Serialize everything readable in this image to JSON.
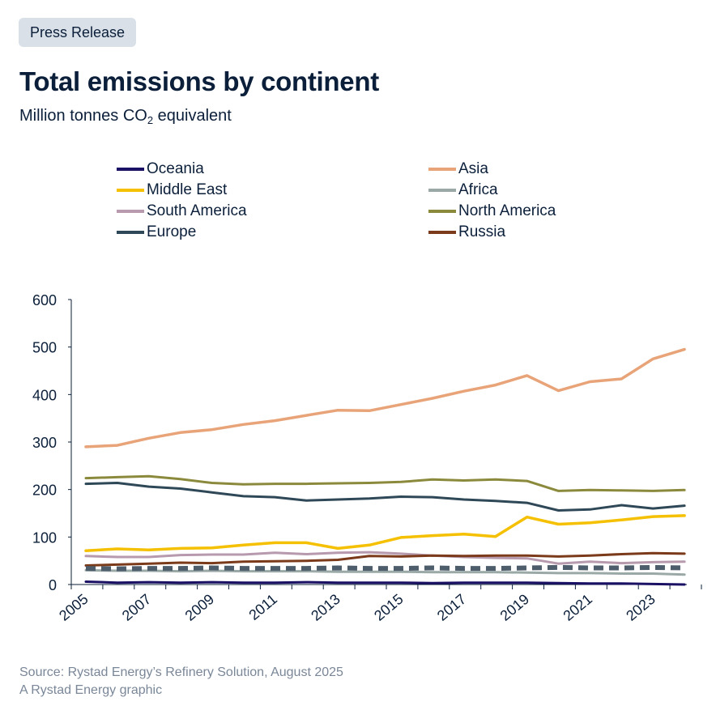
{
  "badge": "Press Release",
  "title": "Total emissions by continent",
  "subtitle": {
    "prefix": "Million tonnes CO",
    "sub": "2",
    "suffix": " equivalent"
  },
  "source": {
    "line1": "Source: Rystad Energy’s Refinery Solution, August 2025",
    "line2": "A Rystad Energy graphic"
  },
  "chart_data": {
    "type": "line",
    "x_ticks": [
      "2005",
      "2007",
      "2009",
      "2011",
      "2013",
      "2015",
      "2017",
      "2019",
      "2021",
      "2023"
    ],
    "y_ticks": [
      "0",
      "100",
      "200",
      "300",
      "400",
      "500",
      "600"
    ],
    "ylim": [
      0,
      600
    ],
    "xlim": [
      2005,
      2024
    ],
    "grid": false,
    "legend_position": "top",
    "x": [
      2005,
      2006,
      2007,
      2008,
      2009,
      2010,
      2011,
      2012,
      2013,
      2014,
      2015,
      2016,
      2017,
      2018,
      2019,
      2020,
      2021,
      2022,
      2023,
      2024
    ],
    "series": [
      {
        "name": "Oceania",
        "color": "#1a1064",
        "values": [
          6,
          4,
          5,
          4,
          5,
          4,
          4,
          5,
          4,
          4,
          4,
          3,
          4,
          4,
          4,
          3,
          2,
          2,
          1,
          0
        ]
      },
      {
        "name": "Asia",
        "color": "#e8a478",
        "values": [
          290,
          293,
          308,
          320,
          326,
          337,
          345,
          356,
          367,
          366,
          379,
          392,
          407,
          420,
          440,
          408,
          427,
          433,
          475,
          495
        ]
      },
      {
        "name": "Middle East",
        "color": "#f5c000",
        "values": [
          71,
          75,
          73,
          76,
          77,
          83,
          88,
          88,
          76,
          83,
          99,
          103,
          106,
          101,
          142,
          127,
          130,
          136,
          143,
          145
        ]
      },
      {
        "name": "Africa",
        "color": "#9aa9a6",
        "values": [
          30,
          29,
          29,
          28,
          29,
          28,
          28,
          28,
          27,
          27,
          27,
          26,
          26,
          26,
          25,
          24,
          24,
          23,
          23,
          21
        ]
      },
      {
        "name": "South America",
        "color": "#b79aae",
        "values": [
          60,
          58,
          58,
          62,
          63,
          63,
          67,
          64,
          67,
          68,
          65,
          61,
          58,
          56,
          55,
          44,
          48,
          45,
          47,
          48
        ]
      },
      {
        "name": "North America",
        "color": "#8b8a3c",
        "values": [
          224,
          226,
          228,
          222,
          214,
          211,
          212,
          212,
          213,
          214,
          216,
          221,
          219,
          221,
          218,
          197,
          199,
          198,
          197,
          199
        ]
      },
      {
        "name": "Europe",
        "color": "#2f4858",
        "values": [
          212,
          214,
          206,
          202,
          194,
          186,
          184,
          177,
          179,
          181,
          185,
          184,
          179,
          176,
          172,
          156,
          158,
          167,
          160,
          166
        ]
      },
      {
        "name": "Russia",
        "color": "#7b3a1a",
        "values": [
          40,
          42,
          44,
          46,
          45,
          48,
          49,
          50,
          52,
          60,
          59,
          61,
          60,
          61,
          61,
          59,
          61,
          64,
          66,
          65
        ]
      }
    ],
    "dashed_series": {
      "color": "#4e5d6c",
      "values": [
        34,
        33,
        34,
        34,
        35,
        34,
        34,
        34,
        35,
        34,
        34,
        35,
        34,
        34,
        35,
        36,
        35,
        35,
        36,
        35
      ]
    }
  }
}
